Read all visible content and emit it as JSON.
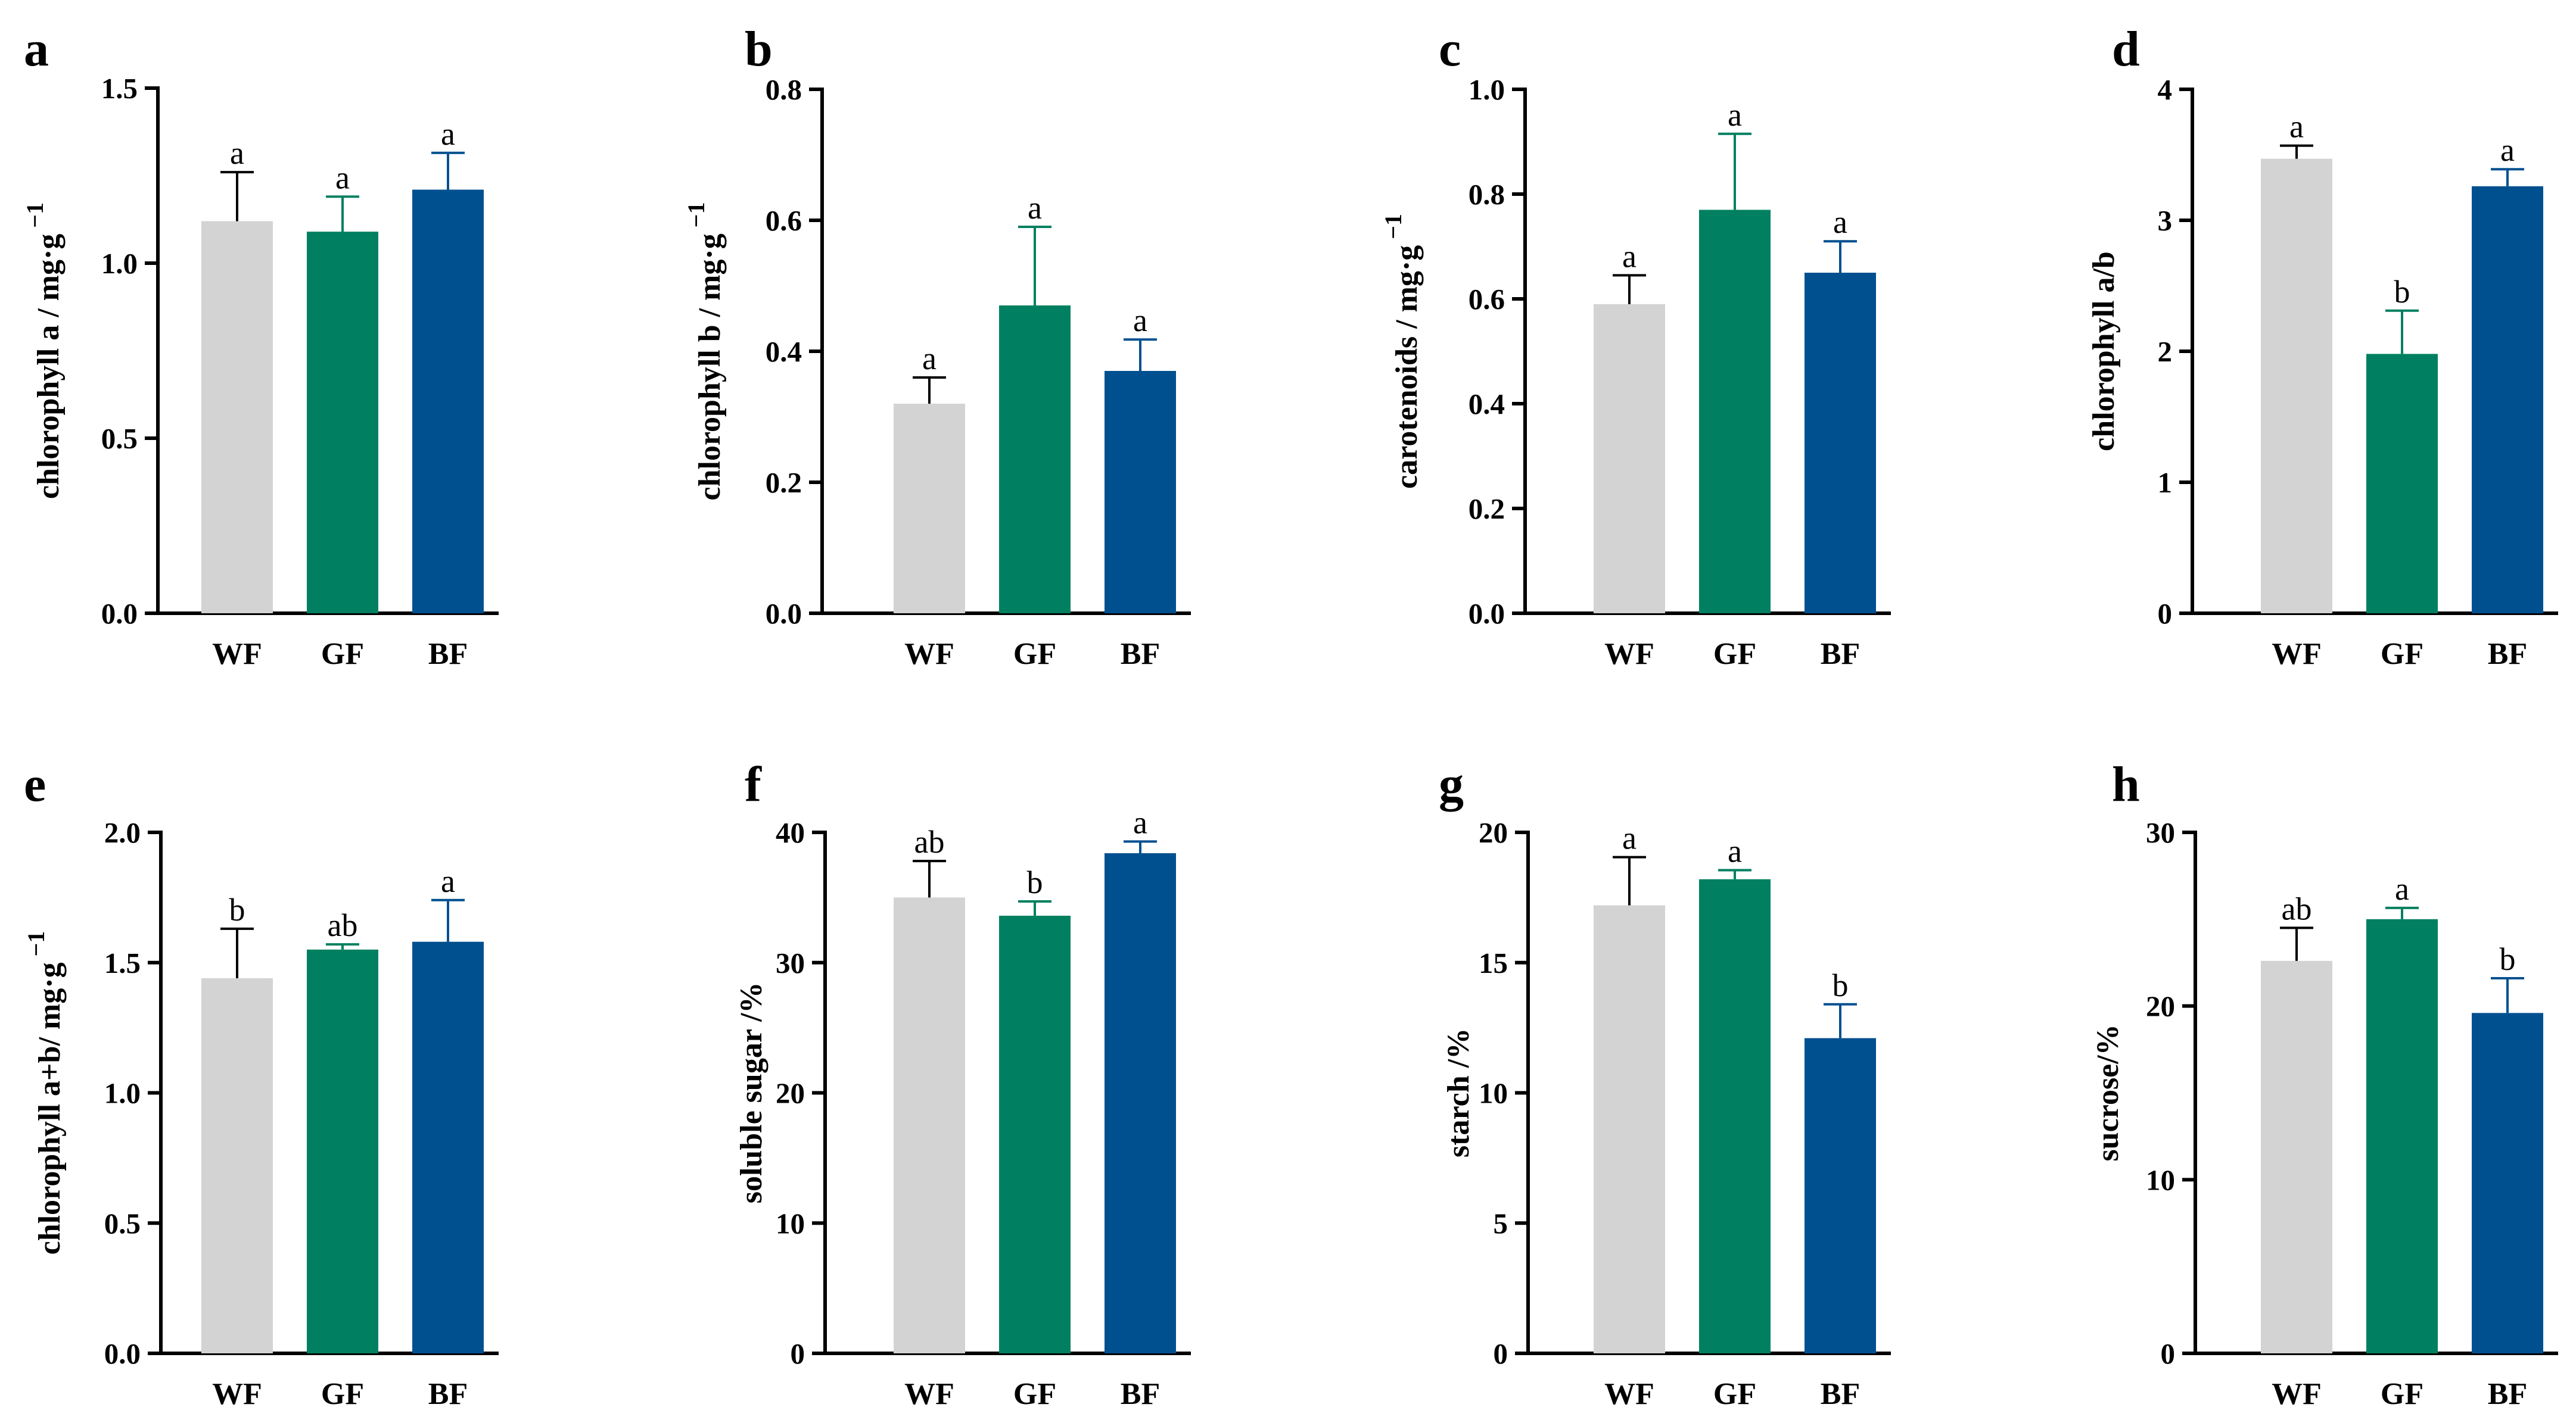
{
  "chart_data": [
    {
      "panel": "a",
      "type": "bar",
      "ylabel": "chlorophyll a / mg·g",
      "ylabel_sup": "−1",
      "categories": [
        "WF",
        "GF",
        "BF"
      ],
      "values": [
        1.12,
        1.09,
        1.21
      ],
      "errors": [
        0.14,
        0.1,
        0.105
      ],
      "significance": [
        "a",
        "a",
        "a"
      ],
      "ylim": [
        0,
        1.5
      ],
      "yticks": [
        "0.0",
        "0.5",
        "1.0",
        "1.5"
      ]
    },
    {
      "panel": "b",
      "type": "bar",
      "ylabel": "chlorophyll b / mg·g",
      "ylabel_sup": "−1",
      "categories": [
        "WF",
        "GF",
        "BF"
      ],
      "values": [
        0.32,
        0.47,
        0.37
      ],
      "errors": [
        0.04,
        0.12,
        0.048
      ],
      "significance": [
        "a",
        "a",
        "a"
      ],
      "ylim": [
        0,
        0.8
      ],
      "yticks": [
        "0.0",
        "0.2",
        "0.4",
        "0.6",
        "0.8"
      ]
    },
    {
      "panel": "c",
      "type": "bar",
      "ylabel": "carotenoids / mg·g",
      "ylabel_sup": "−1",
      "categories": [
        "WF",
        "GF",
        "BF"
      ],
      "values": [
        0.59,
        0.77,
        0.65
      ],
      "errors": [
        0.055,
        0.145,
        0.06
      ],
      "significance": [
        "a",
        "a",
        "a"
      ],
      "ylim": [
        0,
        1.0
      ],
      "yticks": [
        "0.0",
        "0.2",
        "0.4",
        "0.6",
        "0.8",
        "1.0"
      ]
    },
    {
      "panel": "d",
      "type": "bar",
      "ylabel": "chlorophyll a/b",
      "ylabel_sup": "",
      "categories": [
        "WF",
        "GF",
        "BF"
      ],
      "values": [
        3.47,
        1.98,
        3.26
      ],
      "errors": [
        0.1,
        0.33,
        0.13
      ],
      "significance": [
        "a",
        "b",
        "a"
      ],
      "ylim": [
        0,
        4
      ],
      "yticks": [
        "0",
        "1",
        "2",
        "3",
        "4"
      ]
    },
    {
      "panel": "e",
      "type": "bar",
      "ylabel": "chlorophyll a+b/ mg·g",
      "ylabel_sup": "−1",
      "categories": [
        "WF",
        "GF",
        "BF"
      ],
      "values": [
        1.44,
        1.55,
        1.58
      ],
      "errors": [
        0.19,
        0.02,
        0.16
      ],
      "significance": [
        "b",
        "ab",
        "a"
      ],
      "ylim": [
        0,
        2.0
      ],
      "yticks": [
        "0.0",
        "0.5",
        "1.0",
        "1.5",
        "2.0"
      ]
    },
    {
      "panel": "f",
      "type": "bar",
      "ylabel": "soluble sugar /%",
      "ylabel_sup": "",
      "categories": [
        "WF",
        "GF",
        "BF"
      ],
      "values": [
        35.0,
        33.6,
        38.4
      ],
      "errors": [
        2.8,
        1.1,
        0.9
      ],
      "significance": [
        "ab",
        "b",
        "a"
      ],
      "ylim": [
        0,
        40
      ],
      "yticks": [
        "0",
        "10",
        "20",
        "30",
        "40"
      ]
    },
    {
      "panel": "g",
      "type": "bar",
      "ylabel": "starch /%",
      "ylabel_sup": "",
      "categories": [
        "WF",
        "GF",
        "BF"
      ],
      "values": [
        17.2,
        18.2,
        12.1
      ],
      "errors": [
        1.85,
        0.35,
        1.3
      ],
      "significance": [
        "a",
        "a",
        "b"
      ],
      "ylim": [
        0,
        20
      ],
      "yticks": [
        "0",
        "5",
        "10",
        "15",
        "20"
      ]
    },
    {
      "panel": "h",
      "type": "bar",
      "ylabel": "sucrose/%",
      "ylabel_sup": "",
      "categories": [
        "WF",
        "GF",
        "BF"
      ],
      "values": [
        22.6,
        25.0,
        19.6
      ],
      "errors": [
        1.9,
        0.65,
        2.0
      ],
      "significance": [
        "ab",
        "a",
        "b"
      ],
      "ylim": [
        0,
        30
      ],
      "yticks": [
        "0",
        "10",
        "20",
        "30"
      ]
    }
  ],
  "colors": {
    "WF": "#d3d3d3",
    "GF": "#008060",
    "BF": "#005090",
    "WF_error": "#000000",
    "GF_error": "#008060",
    "BF_error": "#005090"
  }
}
